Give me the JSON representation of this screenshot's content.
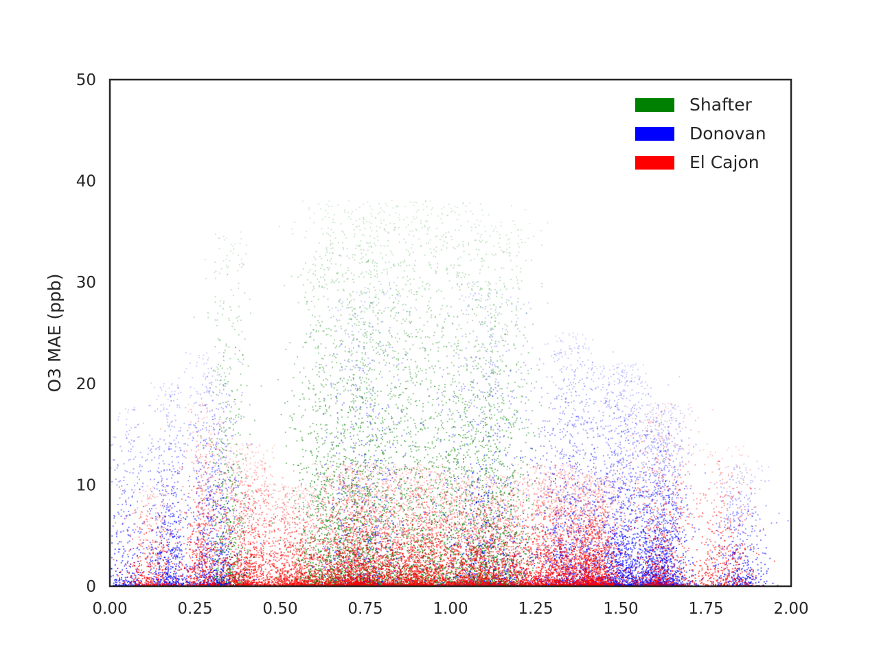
{
  "chart_data": {
    "type": "scatter",
    "title": "",
    "xlabel": "",
    "ylabel": "O3 MAE (ppb)",
    "xlim": [
      0.0,
      2.0
    ],
    "ylim": [
      0,
      50
    ],
    "x_ticks": [
      "0.00",
      "0.25",
      "0.50",
      "0.75",
      "1.00",
      "1.25",
      "1.50",
      "1.75",
      "2.00"
    ],
    "y_ticks": [
      "0",
      "10",
      "20",
      "30",
      "40",
      "50"
    ],
    "grid": false,
    "legend_position": "top-right",
    "series": [
      {
        "name": "Shafter",
        "color": "#008000",
        "clusters": [
          {
            "x": 0.35,
            "y_peak": 35,
            "x_spread": 0.03,
            "weight": 0.5
          },
          {
            "x": 0.63,
            "y_peak": 38,
            "x_spread": 0.05,
            "weight": 1.0
          },
          {
            "x": 0.75,
            "y_peak": 38,
            "x_spread": 0.05,
            "weight": 1.2
          },
          {
            "x": 0.9,
            "y_peak": 38,
            "x_spread": 0.06,
            "weight": 1.0
          },
          {
            "x": 1.05,
            "y_peak": 38,
            "x_spread": 0.06,
            "weight": 1.0
          },
          {
            "x": 1.15,
            "y_peak": 36,
            "x_spread": 0.05,
            "weight": 0.8
          }
        ]
      },
      {
        "name": "Donovan",
        "color": "#0000ff",
        "clusters": [
          {
            "x": 0.05,
            "y_peak": 18,
            "x_spread": 0.03,
            "weight": 0.3
          },
          {
            "x": 0.17,
            "y_peak": 20,
            "x_spread": 0.03,
            "weight": 0.6
          },
          {
            "x": 0.3,
            "y_peak": 23,
            "x_spread": 0.04,
            "weight": 0.8
          },
          {
            "x": 0.75,
            "y_peak": 30,
            "x_spread": 0.07,
            "weight": 0.6
          },
          {
            "x": 1.1,
            "y_peak": 30,
            "x_spread": 0.07,
            "weight": 0.7
          },
          {
            "x": 1.35,
            "y_peak": 25,
            "x_spread": 0.05,
            "weight": 1.0
          },
          {
            "x": 1.5,
            "y_peak": 22,
            "x_spread": 0.05,
            "weight": 1.4
          },
          {
            "x": 1.62,
            "y_peak": 18,
            "x_spread": 0.04,
            "weight": 1.2
          },
          {
            "x": 1.85,
            "y_peak": 12,
            "x_spread": 0.04,
            "weight": 0.4
          }
        ]
      },
      {
        "name": "El Cajon",
        "color": "#ff0000",
        "clusters": [
          {
            "x": 0.12,
            "y_peak": 10,
            "x_spread": 0.04,
            "weight": 0.4
          },
          {
            "x": 0.27,
            "y_peak": 18,
            "x_spread": 0.03,
            "weight": 0.5
          },
          {
            "x": 0.4,
            "y_peak": 14,
            "x_spread": 0.05,
            "weight": 1.0
          },
          {
            "x": 0.55,
            "y_peak": 10,
            "x_spread": 0.05,
            "weight": 0.9
          },
          {
            "x": 0.72,
            "y_peak": 12,
            "x_spread": 0.06,
            "weight": 1.6
          },
          {
            "x": 0.9,
            "y_peak": 12,
            "x_spread": 0.07,
            "weight": 1.6
          },
          {
            "x": 1.1,
            "y_peak": 11,
            "x_spread": 0.07,
            "weight": 1.5
          },
          {
            "x": 1.3,
            "y_peak": 12,
            "x_spread": 0.06,
            "weight": 1.4
          },
          {
            "x": 1.42,
            "y_peak": 11,
            "x_spread": 0.04,
            "weight": 1.2
          },
          {
            "x": 1.62,
            "y_peak": 18,
            "x_spread": 0.05,
            "weight": 0.6
          },
          {
            "x": 1.8,
            "y_peak": 14,
            "x_spread": 0.05,
            "weight": 0.4
          }
        ]
      }
    ]
  }
}
